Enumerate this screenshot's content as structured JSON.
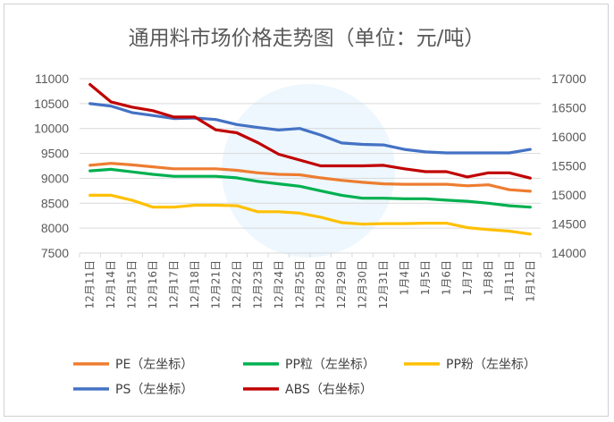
{
  "chart_data": {
    "type": "line",
    "title": "通用料市场价格走势图（单位：元/吨）",
    "categories": [
      "12月11日",
      "12月14日",
      "12月15日",
      "12月16日",
      "12月17日",
      "12月18日",
      "12月21日",
      "12月22日",
      "12月23日",
      "12月24日",
      "12月25日",
      "12月28日",
      "12月29日",
      "12月30日",
      "12月31日",
      "1月4日",
      "1月5日",
      "1月6日",
      "1月7日",
      "1月8日",
      "1月11日",
      "1月12日"
    ],
    "left_axis": {
      "min": 7500,
      "max": 11000,
      "step": 500,
      "ticks": [
        "11000",
        "10500",
        "10000",
        "9500",
        "9000",
        "8500",
        "8000",
        "7500"
      ]
    },
    "right_axis": {
      "min": 14000,
      "max": 17000,
      "step": 500,
      "ticks": [
        "17000",
        "16500",
        "16000",
        "15500",
        "15000",
        "14500",
        "14000"
      ]
    },
    "grid": true,
    "legend_position": "bottom",
    "series": [
      {
        "name": "PE（左坐标）",
        "axis": "left",
        "color": "#ED7D31",
        "values": [
          9260,
          9300,
          9270,
          9230,
          9190,
          9190,
          9190,
          9160,
          9110,
          9080,
          9070,
          9010,
          8960,
          8920,
          8890,
          8880,
          8880,
          8880,
          8850,
          8870,
          8770,
          8740
        ]
      },
      {
        "name": "PP粒（左坐标）",
        "axis": "left",
        "color": "#00B050",
        "values": [
          9150,
          9180,
          9130,
          9080,
          9040,
          9040,
          9040,
          9010,
          8940,
          8890,
          8840,
          8750,
          8660,
          8600,
          8600,
          8590,
          8590,
          8560,
          8540,
          8500,
          8450,
          8420
        ]
      },
      {
        "name": "PP粉（左坐标）",
        "axis": "left",
        "color": "#FFC000",
        "values": [
          8660,
          8660,
          8560,
          8420,
          8420,
          8460,
          8460,
          8450,
          8330,
          8330,
          8300,
          8220,
          8110,
          8080,
          8090,
          8090,
          8100,
          8100,
          8010,
          7970,
          7940,
          7880
        ]
      },
      {
        "name": "PS（左坐标）",
        "axis": "left",
        "color": "#4472C4",
        "values": [
          10500,
          10450,
          10320,
          10260,
          10200,
          10210,
          10180,
          10080,
          10020,
          9970,
          10000,
          9870,
          9710,
          9680,
          9670,
          9580,
          9530,
          9510,
          9510,
          9510,
          9510,
          9580
        ]
      },
      {
        "name": "ABS（右坐标）",
        "axis": "right",
        "color": "#C00000",
        "values": [
          16900,
          16600,
          16510,
          16450,
          16340,
          16340,
          16120,
          16070,
          15900,
          15700,
          15600,
          15500,
          15500,
          15500,
          15510,
          15450,
          15400,
          15400,
          15310,
          15380,
          15380,
          15290
        ]
      }
    ]
  }
}
